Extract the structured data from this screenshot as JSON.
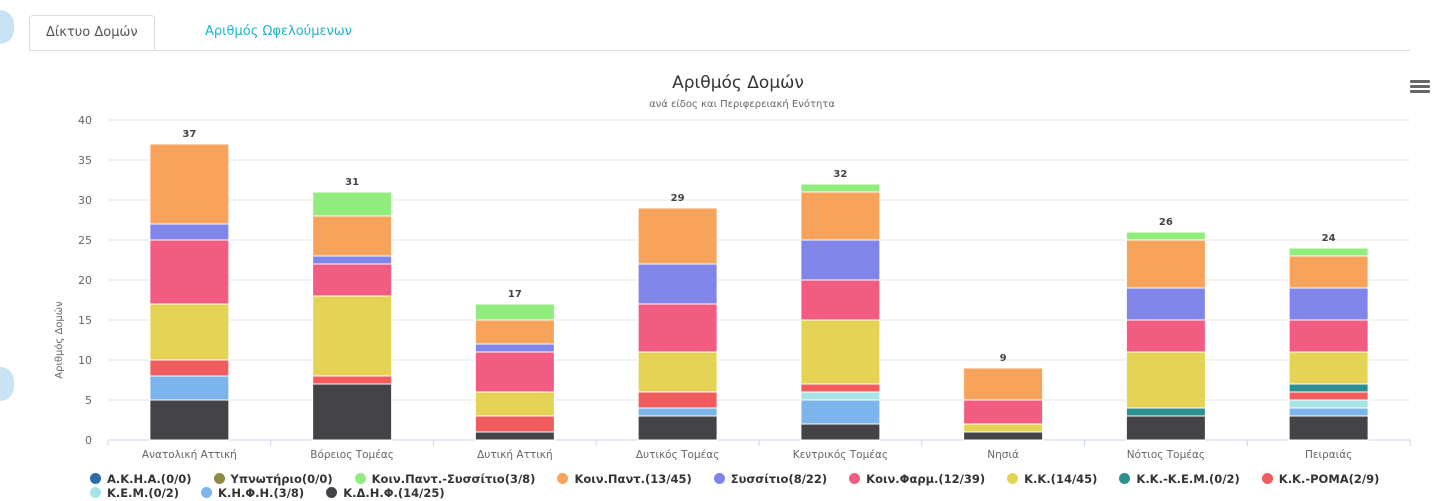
{
  "tabs": [
    {
      "label": "Δίκτυο Δομών",
      "active": true
    },
    {
      "label": "Αριθμός Ωφελούμενων",
      "active": false
    }
  ],
  "menu_icon": "hamburger-menu-icon",
  "colors": {
    "tab_active_text": "#555555",
    "tab_link": "#1ab5cc",
    "grid": "#e6e6e6",
    "axis_text": "#666666"
  },
  "chart_data": {
    "type": "bar",
    "stacked": true,
    "title": "Αριθμός Δομών",
    "subtitle": "ανά είδος και Περιφερειακή Ενότητα",
    "xlabel": "",
    "ylabel": "Αριθμός Δομών",
    "ylim": [
      0,
      40
    ],
    "yticks": [
      0,
      5,
      10,
      15,
      20,
      25,
      30,
      35,
      40
    ],
    "grid": true,
    "legend_position": "bottom",
    "categories": [
      "Ανατολική Αττική",
      "Βόρειος Τομέας",
      "Δυτική Αττική",
      "Δυτικός Τομέας",
      "Κεντρικός Τομέας",
      "Νησιά",
      "Νότιος Τομέας",
      "Πειραιάς"
    ],
    "totals": [
      37,
      31,
      17,
      29,
      32,
      9,
      26,
      24
    ],
    "series": [
      {
        "name": "Κ.Δ.Η.Φ.(14/25)",
        "color": "#434348",
        "values": [
          5,
          7,
          1,
          3,
          2,
          1,
          3,
          3
        ]
      },
      {
        "name": "Κ.Η.Φ.Η.(3/8)",
        "color": "#7cb5ec",
        "values": [
          3,
          0,
          0,
          1,
          3,
          0,
          0,
          1
        ]
      },
      {
        "name": "Κ.Ε.Μ.(0/2)",
        "color": "#a8e3e6",
        "values": [
          0,
          0,
          0,
          0,
          1,
          0,
          0,
          1
        ]
      },
      {
        "name": "Κ.Κ.-ΡΟΜΑ(2/9)",
        "color": "#f15c5c",
        "values": [
          2,
          1,
          2,
          2,
          1,
          0,
          0,
          1
        ]
      },
      {
        "name": "Κ.Κ.-Κ.Ε.Μ.(0/2)",
        "color": "#2b908f",
        "values": [
          0,
          0,
          0,
          0,
          0,
          0,
          1,
          1
        ]
      },
      {
        "name": "Κ.Κ.(14/45)",
        "color": "#e4d354",
        "values": [
          7,
          10,
          3,
          5,
          8,
          1,
          7,
          4
        ]
      },
      {
        "name": "Κοιν.Φαρμ.(12/39)",
        "color": "#f15c80",
        "values": [
          8,
          4,
          5,
          6,
          5,
          3,
          4,
          4
        ]
      },
      {
        "name": "Συσσίτιο(8/22)",
        "color": "#8085e9",
        "values": [
          2,
          1,
          1,
          5,
          5,
          0,
          4,
          4
        ]
      },
      {
        "name": "Κοιν.Παντ.(13/45)",
        "color": "#f7a35c",
        "values": [
          10,
          5,
          3,
          7,
          6,
          4,
          6,
          4
        ]
      },
      {
        "name": "Κοιν.Παντ.-Συσσίτιο(3/8)",
        "color": "#90ed7d",
        "values": [
          0,
          3,
          2,
          0,
          1,
          0,
          1,
          1
        ]
      },
      {
        "name": "Υπνωτήριο(0/0)",
        "color": "#8d8a45",
        "values": [
          0,
          0,
          0,
          0,
          0,
          0,
          0,
          0
        ]
      },
      {
        "name": "Α.Κ.Η.Α.(0/0)",
        "color": "#2f6ba8",
        "values": [
          0,
          0,
          0,
          0,
          0,
          0,
          0,
          0
        ]
      }
    ],
    "legend_order": [
      "Α.Κ.Η.Α.(0/0)",
      "Υπνωτήριο(0/0)",
      "Κοιν.Παντ.-Συσσίτιο(3/8)",
      "Κοιν.Παντ.(13/45)",
      "Συσσίτιο(8/22)",
      "Κοιν.Φαρμ.(12/39)",
      "Κ.Κ.(14/45)",
      "Κ.Κ.-Κ.Ε.Μ.(0/2)",
      "Κ.Κ.-ΡΟΜΑ(2/9)",
      "Κ.Ε.Μ.(0/2)",
      "Κ.Η.Φ.Η.(3/8)",
      "Κ.Δ.Η.Φ.(14/25)"
    ]
  }
}
